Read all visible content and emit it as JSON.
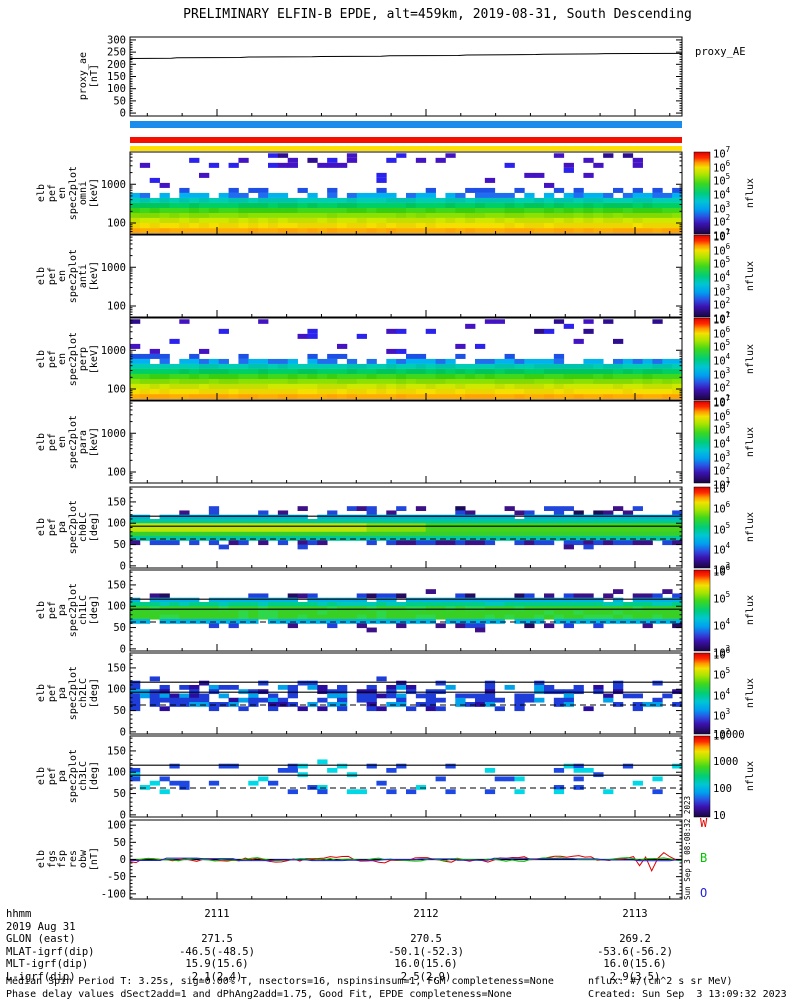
{
  "title": "PRELIMINARY ELFIN-B EPDE, alt=459km, 2019-08-31, South Descending",
  "right_labels": {
    "proxy": "proxy_AE",
    "flux_unit": "nflux"
  },
  "side_timestamp": "Sun Sep  3 08:08:32 2023",
  "quality_bars": [
    {
      "name": "quality-bar-blue",
      "color": "#1b8ceb"
    },
    {
      "name": "quality-bar-red",
      "color": "#f50f00"
    },
    {
      "name": "quality-bar-yellow",
      "color": "#ffdf00"
    }
  ],
  "panels": [
    {
      "name": "proxy_ae",
      "label_lines": [
        "proxy_ae",
        "[nT]"
      ],
      "right_label": "proxy_AE",
      "ytick_labels": [
        "0",
        "50",
        "100",
        "150",
        "200",
        "250",
        "300"
      ]
    },
    {
      "name": "en_omni",
      "label_lines": [
        "elb",
        "pef",
        "en",
        "spec2plot",
        "omni",
        "[keV]"
      ],
      "ytick_labels": [
        "100",
        "1000"
      ],
      "colorbar_ticks": [
        "10^7",
        "10^6",
        "10^5",
        "10^4",
        "10^3",
        "10^2",
        "10^1"
      ],
      "colorbar_label": "nflux"
    },
    {
      "name": "en_anti",
      "label_lines": [
        "elb",
        "pef",
        "en",
        "spec2plot",
        "anti",
        "[keV]"
      ],
      "ytick_labels": [
        "100",
        "1000"
      ],
      "colorbar_ticks": [
        "10^7",
        "10^6",
        "10^5",
        "10^4",
        "10^3",
        "10^2",
        "10^1"
      ],
      "colorbar_label": "nflux"
    },
    {
      "name": "en_perp",
      "label_lines": [
        "elb",
        "pef",
        "en",
        "spec2plot",
        "perp",
        "[keV]"
      ],
      "ytick_labels": [
        "100",
        "1000"
      ],
      "colorbar_ticks": [
        "10^7",
        "10^6",
        "10^5",
        "10^4",
        "10^3",
        "10^2",
        "10^1"
      ],
      "colorbar_label": "nflux"
    },
    {
      "name": "en_para",
      "label_lines": [
        "elb",
        "pef",
        "en",
        "spec2plot",
        "para",
        "[keV]"
      ],
      "ytick_labels": [
        "100",
        "1000"
      ],
      "colorbar_ticks": [
        "10^7",
        "10^6",
        "10^5",
        "10^4",
        "10^3",
        "10^2",
        "10^1"
      ],
      "colorbar_label": "nflux"
    },
    {
      "name": "pa_ch0lc",
      "label_lines": [
        "elb",
        "pef",
        "pa",
        "spec2plot",
        "ch0LC",
        "[deg]"
      ],
      "ytick_labels": [
        "0",
        "50",
        "100",
        "150"
      ],
      "colorbar_ticks": [
        "10^7",
        "10^6",
        "10^5",
        "10^4",
        "10^3"
      ],
      "colorbar_label": "nflux"
    },
    {
      "name": "pa_ch1lc",
      "label_lines": [
        "elb",
        "pef",
        "pa",
        "spec2plot",
        "ch1LC",
        "[deg]"
      ],
      "ytick_labels": [
        "0",
        "50",
        "100",
        "150"
      ],
      "colorbar_ticks": [
        "10^6",
        "10^5",
        "10^4",
        "10^3"
      ],
      "colorbar_label": "nflux"
    },
    {
      "name": "pa_ch2lc",
      "label_lines": [
        "elb",
        "pef",
        "pa",
        "spec2plot",
        "ch2LC",
        "[deg]"
      ],
      "ytick_labels": [
        "0",
        "50",
        "100",
        "150"
      ],
      "colorbar_ticks": [
        "10^6",
        "10^5",
        "10^4",
        "10^3",
        "10^2"
      ],
      "colorbar_label": "nflux"
    },
    {
      "name": "pa_ch3lc",
      "label_lines": [
        "elb",
        "pef",
        "pa",
        "spec2plot",
        "ch3LC",
        "[deg]"
      ],
      "ytick_labels": [
        "0",
        "50",
        "100",
        "150"
      ],
      "colorbar_ticks": [
        "10000",
        "1000",
        "100",
        "10"
      ],
      "colorbar_label": "nflux"
    },
    {
      "name": "mag",
      "label_lines": [
        "elb",
        "fgs",
        "fsp",
        "res",
        "obw",
        "[nT]"
      ],
      "ytick_labels": [
        "-100",
        "-50",
        "0",
        "50",
        "100"
      ]
    }
  ],
  "legend": {
    "items": [
      {
        "label": "W",
        "color": "#e50000"
      },
      {
        "label": "B",
        "color": "#00c400"
      },
      {
        "label": "O",
        "color": "#2222e0"
      }
    ]
  },
  "bottom_table": {
    "rows": [
      {
        "label": "hhmm",
        "values": [
          "2111",
          "2112",
          "2113"
        ]
      },
      {
        "label": "2019 Aug 31",
        "values": []
      },
      {
        "label": "GLON (east)",
        "values": [
          "271.5",
          "270.5",
          "269.2"
        ]
      },
      {
        "label": "MLAT-igrf(dip)",
        "values": [
          "-46.5(-48.5)",
          "-50.1(-52.3)",
          "-53.6(-56.2)"
        ]
      },
      {
        "label": "MLT-igrf(dip)",
        "values": [
          "15.9(15.6)",
          "16.0(15.6)",
          "16.0(15.6)"
        ]
      },
      {
        "label": "L-igrf(dip)",
        "values": [
          "2.1(2.4)",
          "2.5(2.9)",
          "2.9(3.5)"
        ]
      }
    ]
  },
  "footer": {
    "left1": "Median Spin Period T: 3.25s, sig=0.00% T, nsectors=16, nspinsinsum=1, FGM completeness=None",
    "left2": "Phase delay values dSect2add=1 and dPhAng2add=1.75, Good Fit, EPDE completeness=None",
    "right1": "nflux: #/(cm^2 s sr MeV)",
    "right2": "Created: Sun Sep  3 13:09:32 2023"
  },
  "chart_data": [
    {
      "type": "line",
      "panel": "proxy_ae",
      "title": "proxy_ae [nT]",
      "ylabel": "proxy_ae [nT]",
      "ylim": [
        0,
        300
      ],
      "yticks": [
        0,
        50,
        100,
        150,
        200,
        250,
        300
      ],
      "x_ticks_hhmm": [
        "2111",
        "2112",
        "2113"
      ],
      "series": [
        {
          "name": "proxy_AE",
          "x_frac": [
            0,
            0.075,
            0.085,
            0.2,
            0.215,
            0.33,
            0.345,
            0.455,
            0.47,
            0.595,
            0.61,
            0.735,
            0.75,
            0.845,
            0.86,
            1.0
          ],
          "values": [
            224,
            225,
            227,
            228,
            230,
            231,
            232,
            233,
            235,
            236,
            238,
            240,
            241,
            243,
            244,
            245
          ]
        }
      ]
    },
    {
      "type": "heatmap",
      "panel": "en_omni",
      "title": "elb pef en spec2plot omni [keV]",
      "yscale": "log",
      "ylim_keV": [
        52,
        6800
      ],
      "ytick_keV": [
        100,
        1000
      ],
      "colorbar_range": [
        "1e1",
        "1e7"
      ],
      "colorbar_label": "nflux",
      "bands": [
        {
          "energy_keV": [
            55,
            74
          ],
          "approx_nflux": 2000000.0
        },
        {
          "energy_keV": [
            74,
            100
          ],
          "approx_nflux": 1000000.0
        },
        {
          "energy_keV": [
            100,
            135
          ],
          "approx_nflux": 600000.0
        },
        {
          "energy_keV": [
            135,
            181
          ],
          "approx_nflux": 300000.0
        },
        {
          "energy_keV": [
            181,
            244
          ],
          "approx_nflux": 150000.0
        },
        {
          "energy_keV": [
            244,
            329
          ],
          "approx_nflux": 60000.0
        },
        {
          "energy_keV": [
            329,
            443
          ],
          "approx_nflux": 25000.0
        },
        {
          "energy_keV": [
            443,
            600
          ],
          "approx_nflux": 3000.0,
          "note": "intermittent"
        },
        {
          "energy_keV": [
            600,
            6300
          ],
          "approx_nflux": 300,
          "note": "sparse speckles"
        }
      ]
    },
    {
      "type": "heatmap",
      "panel": "en_anti",
      "title": "elb pef en spec2plot anti [keV]",
      "yscale": "log",
      "ylim_keV": [
        52,
        6800
      ],
      "ytick_keV": [
        100,
        1000
      ],
      "colorbar_range": [
        "1e1",
        "1e7"
      ],
      "colorbar_label": "nflux",
      "bands": [],
      "note": "no data (blank panel)"
    },
    {
      "type": "heatmap",
      "panel": "en_perp",
      "title": "elb pef en spec2plot perp [keV]",
      "yscale": "log",
      "ylim_keV": [
        52,
        6800
      ],
      "ytick_keV": [
        100,
        1000
      ],
      "colorbar_range": [
        "1e1",
        "1e7"
      ],
      "colorbar_label": "nflux",
      "bands": [
        {
          "energy_keV": [
            55,
            74
          ],
          "approx_nflux": 2000000.0
        },
        {
          "energy_keV": [
            74,
            100
          ],
          "approx_nflux": 1000000.0
        },
        {
          "energy_keV": [
            100,
            135
          ],
          "approx_nflux": 600000.0
        },
        {
          "energy_keV": [
            135,
            181
          ],
          "approx_nflux": 300000.0
        },
        {
          "energy_keV": [
            181,
            244
          ],
          "approx_nflux": 150000.0
        },
        {
          "energy_keV": [
            244,
            329
          ],
          "approx_nflux": 60000.0
        },
        {
          "energy_keV": [
            329,
            443
          ],
          "approx_nflux": 25000.0
        },
        {
          "energy_keV": [
            443,
            600
          ],
          "approx_nflux": 3000.0,
          "note": "intermittent"
        },
        {
          "energy_keV": [
            600,
            6300
          ],
          "approx_nflux": 300,
          "note": "sparse speckles"
        }
      ]
    },
    {
      "type": "heatmap",
      "panel": "en_para",
      "title": "elb pef en spec2plot para [keV]",
      "yscale": "log",
      "ylim_keV": [
        52,
        6800
      ],
      "ytick_keV": [
        100,
        1000
      ],
      "colorbar_range": [
        "1e1",
        "1e7"
      ],
      "colorbar_label": "nflux",
      "bands": [],
      "note": "no data (blank panel)"
    },
    {
      "type": "heatmap",
      "panel": "pa_ch0lc",
      "title": "elb pef pa spec2plot ch0LC [deg]",
      "ylim_deg": [
        0,
        180
      ],
      "yticks": [
        0,
        50,
        100,
        150
      ],
      "colorbar_range": [
        "1e3",
        "1e7"
      ],
      "colorbar_label": "nflux",
      "band_deg": [
        52,
        122
      ],
      "peak_deg": 90,
      "peak_nflux": 1000000.0,
      "density": 1.0,
      "overlay_lines": [
        {
          "deg": 116.5,
          "style": "solid"
        },
        {
          "deg": 93,
          "style": "solid"
        },
        {
          "deg": 63,
          "style": "dashed"
        }
      ]
    },
    {
      "type": "heatmap",
      "panel": "pa_ch1lc",
      "title": "elb pef pa spec2plot ch1LC [deg]",
      "ylim_deg": [
        0,
        180
      ],
      "yticks": [
        0,
        50,
        100,
        150
      ],
      "colorbar_range": [
        "1e2",
        "1e6"
      ],
      "colorbar_label": "nflux",
      "band_deg": [
        50,
        125
      ],
      "peak_deg": 90,
      "peak_nflux": 200000.0,
      "density": 1.0,
      "overlay_lines": [
        {
          "deg": 116.5,
          "style": "solid"
        },
        {
          "deg": 93,
          "style": "solid"
        },
        {
          "deg": 63,
          "style": "dashed"
        }
      ]
    },
    {
      "type": "heatmap",
      "panel": "pa_ch2lc",
      "title": "elb pef pa spec2plot ch2LC [deg]",
      "ylim_deg": [
        0,
        180
      ],
      "yticks": [
        0,
        50,
        100,
        150
      ],
      "colorbar_range": [
        "1e2",
        "1e6"
      ],
      "colorbar_label": "nflux",
      "band_deg": [
        58,
        118
      ],
      "peak_deg": 90,
      "peak_nflux": 20000.0,
      "density": 0.6,
      "overlay_lines": [
        {
          "deg": 116.5,
          "style": "solid"
        },
        {
          "deg": 93,
          "style": "solid"
        },
        {
          "deg": 63,
          "style": "dashed"
        }
      ]
    },
    {
      "type": "heatmap",
      "panel": "pa_ch3lc",
      "title": "elb pef pa spec2plot ch3LC [deg]",
      "ylim_deg": [
        0,
        180
      ],
      "yticks": [
        0,
        50,
        100,
        150
      ],
      "colorbar_range": [
        "1e1",
        "1e4"
      ],
      "colorbar_label": "nflux",
      "band_deg": [
        55,
        122
      ],
      "peak_deg": 90,
      "peak_nflux": 300,
      "density": 0.14,
      "overlay_lines": [
        {
          "deg": 116.5,
          "style": "solid"
        },
        {
          "deg": 93,
          "style": "solid"
        },
        {
          "deg": 63,
          "style": "dashed"
        }
      ]
    },
    {
      "type": "line",
      "panel": "mag",
      "title": "elb fgs fsp res obw [nT]",
      "ylim": [
        -100,
        100
      ],
      "yticks": [
        -100,
        -50,
        0,
        50,
        100
      ],
      "series": [
        {
          "name": "W",
          "color": "#dd0000",
          "amplitude_nT": 13,
          "spikes": [
            [
              0.928,
              -18
            ],
            [
              0.942,
              -33
            ],
            [
              0.955,
              3
            ],
            [
              0.966,
              20
            ],
            [
              0.978,
              8
            ]
          ]
        },
        {
          "name": "B",
          "color": "#00bb00",
          "amplitude_nT": 8,
          "spikes": []
        },
        {
          "name": "O",
          "color": "#2222dd",
          "amplitude_nT": 5,
          "step_points": 6,
          "spikes": []
        }
      ]
    }
  ]
}
